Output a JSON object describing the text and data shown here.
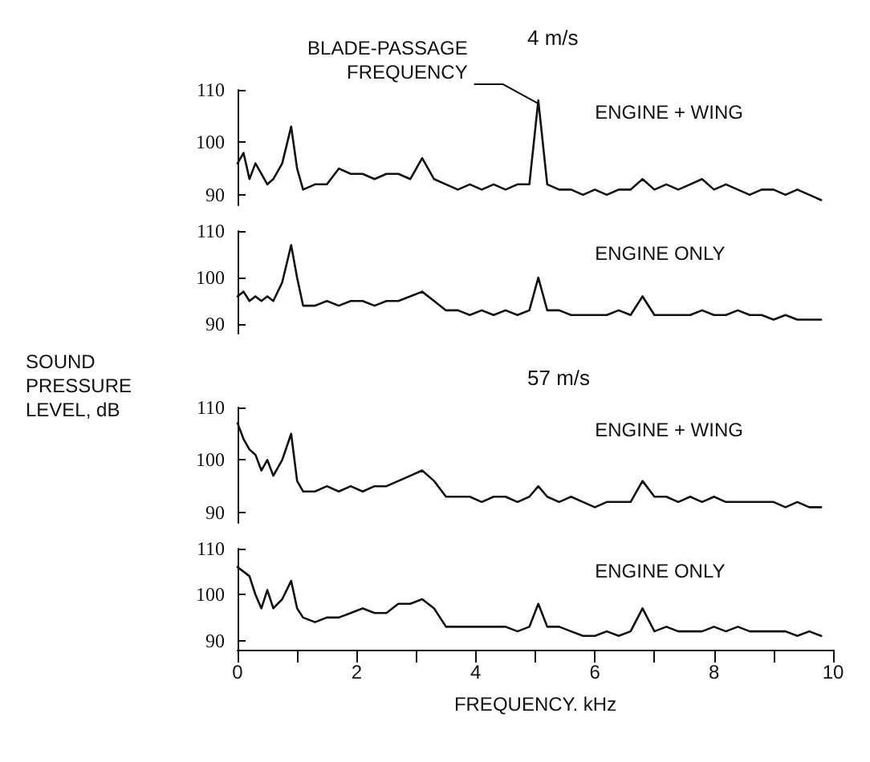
{
  "chart_data": [
    {
      "type": "line",
      "title": "4 m/s",
      "annotations": [
        {
          "text": "BLADE-PASSAGE FREQUENCY",
          "x": 5.05,
          "y": 108
        },
        "ENGINE + WING"
      ],
      "color": "#111111",
      "marker": "none",
      "line_style": "solid",
      "x": [
        0,
        0.1,
        0.2,
        0.3,
        0.4,
        0.5,
        0.6,
        0.75,
        0.9,
        1.0,
        1.1,
        1.3,
        1.5,
        1.7,
        1.9,
        2.1,
        2.3,
        2.5,
        2.7,
        2.9,
        3.1,
        3.3,
        3.5,
        3.7,
        3.9,
        4.1,
        4.3,
        4.5,
        4.7,
        4.9,
        5.05,
        5.2,
        5.4,
        5.6,
        5.8,
        6.0,
        6.2,
        6.4,
        6.6,
        6.8,
        7.0,
        7.2,
        7.4,
        7.6,
        7.8,
        8.0,
        8.2,
        8.4,
        8.6,
        8.8,
        9.0,
        9.2,
        9.4,
        9.6,
        9.8
      ],
      "values": [
        96,
        98,
        93,
        96,
        94,
        92,
        93,
        96,
        103,
        95,
        91,
        92,
        92,
        95,
        94,
        94,
        93,
        94,
        94,
        93,
        97,
        93,
        92,
        91,
        92,
        91,
        92,
        91,
        92,
        92,
        108,
        92,
        91,
        91,
        90,
        91,
        90,
        91,
        91,
        93,
        91,
        92,
        91,
        92,
        93,
        91,
        92,
        91,
        90,
        91,
        91,
        90,
        91,
        90,
        89
      ],
      "xlim": [
        0,
        10
      ],
      "ylim": [
        88,
        110
      ],
      "yticks": [
        90,
        100,
        110
      ],
      "tick_labels": "y"
    },
    {
      "type": "line",
      "annotations": [
        "ENGINE ONLY"
      ],
      "color": "#111111",
      "marker": "none",
      "line_style": "solid",
      "x": [
        0,
        0.1,
        0.2,
        0.3,
        0.4,
        0.5,
        0.6,
        0.75,
        0.9,
        1.0,
        1.1,
        1.3,
        1.5,
        1.7,
        1.9,
        2.1,
        2.3,
        2.5,
        2.7,
        2.9,
        3.1,
        3.3,
        3.5,
        3.7,
        3.9,
        4.1,
        4.3,
        4.5,
        4.7,
        4.9,
        5.05,
        5.2,
        5.4,
        5.6,
        5.8,
        6.0,
        6.2,
        6.4,
        6.6,
        6.8,
        7.0,
        7.2,
        7.4,
        7.6,
        7.8,
        8.0,
        8.2,
        8.4,
        8.6,
        8.8,
        9.0,
        9.2,
        9.4,
        9.6,
        9.8
      ],
      "values": [
        96,
        97,
        95,
        96,
        95,
        96,
        95,
        99,
        107,
        100,
        94,
        94,
        95,
        94,
        95,
        95,
        94,
        95,
        95,
        96,
        97,
        95,
        93,
        93,
        92,
        93,
        92,
        93,
        92,
        93,
        100,
        93,
        93,
        92,
        92,
        92,
        92,
        93,
        92,
        96,
        92,
        92,
        92,
        92,
        93,
        92,
        92,
        93,
        92,
        92,
        91,
        92,
        91,
        91,
        91
      ],
      "xlim": [
        0,
        10
      ],
      "ylim": [
        88,
        110
      ],
      "yticks": [
        90,
        100,
        110
      ],
      "tick_labels": "y"
    },
    {
      "type": "line",
      "title": "57 m/s",
      "ylabel": "SOUND PRESSURE LEVEL, dB",
      "annotations": [
        "ENGINE + WING"
      ],
      "color": "#111111",
      "marker": "none",
      "line_style": "solid",
      "x": [
        0,
        0.1,
        0.2,
        0.3,
        0.4,
        0.5,
        0.6,
        0.75,
        0.9,
        1.0,
        1.1,
        1.3,
        1.5,
        1.7,
        1.9,
        2.1,
        2.3,
        2.5,
        2.7,
        2.9,
        3.1,
        3.3,
        3.5,
        3.7,
        3.9,
        4.1,
        4.3,
        4.5,
        4.7,
        4.9,
        5.05,
        5.2,
        5.4,
        5.6,
        5.8,
        6.0,
        6.2,
        6.4,
        6.6,
        6.8,
        7.0,
        7.2,
        7.4,
        7.6,
        7.8,
        8.0,
        8.2,
        8.4,
        8.6,
        8.8,
        9.0,
        9.2,
        9.4,
        9.6,
        9.8
      ],
      "values": [
        107,
        104,
        102,
        101,
        98,
        100,
        97,
        100,
        105,
        96,
        94,
        94,
        95,
        94,
        95,
        94,
        95,
        95,
        96,
        97,
        98,
        96,
        93,
        93,
        93,
        92,
        93,
        93,
        92,
        93,
        95,
        93,
        92,
        93,
        92,
        91,
        92,
        92,
        92,
        96,
        93,
        93,
        92,
        93,
        92,
        93,
        92,
        92,
        92,
        92,
        92,
        91,
        92,
        91,
        91
      ],
      "xlim": [
        0,
        10
      ],
      "ylim": [
        88,
        110
      ],
      "yticks": [
        90,
        100,
        110
      ],
      "tick_labels": "y"
    },
    {
      "type": "line",
      "xlabel": "FREQUENCY. kHz",
      "annotations": [
        "ENGINE ONLY"
      ],
      "color": "#111111",
      "marker": "none",
      "line_style": "solid",
      "x": [
        0,
        0.1,
        0.2,
        0.3,
        0.4,
        0.5,
        0.6,
        0.75,
        0.9,
        1.0,
        1.1,
        1.3,
        1.5,
        1.7,
        1.9,
        2.1,
        2.3,
        2.5,
        2.7,
        2.9,
        3.1,
        3.3,
        3.5,
        3.7,
        3.9,
        4.1,
        4.3,
        4.5,
        4.7,
        4.9,
        5.05,
        5.2,
        5.4,
        5.6,
        5.8,
        6.0,
        6.2,
        6.4,
        6.6,
        6.8,
        7.0,
        7.2,
        7.4,
        7.6,
        7.8,
        8.0,
        8.2,
        8.4,
        8.6,
        8.8,
        9.0,
        9.2,
        9.4,
        9.6,
        9.8
      ],
      "values": [
        106,
        105,
        104,
        100,
        97,
        101,
        97,
        99,
        103,
        97,
        95,
        94,
        95,
        95,
        96,
        97,
        96,
        96,
        98,
        98,
        99,
        97,
        93,
        93,
        93,
        93,
        93,
        93,
        92,
        93,
        98,
        93,
        93,
        92,
        91,
        91,
        92,
        91,
        92,
        97,
        92,
        93,
        92,
        92,
        92,
        93,
        92,
        93,
        92,
        92,
        92,
        92,
        91,
        92,
        91
      ],
      "xlim": [
        0,
        10
      ],
      "xticks": [
        0,
        {
          "value": 1,
          "label": null
        },
        2,
        {
          "value": 3,
          "label": null
        },
        4,
        {
          "value": 5,
          "label": null
        },
        6,
        {
          "value": 7,
          "label": null
        },
        8,
        {
          "value": 9,
          "label": null
        },
        10
      ],
      "ylim": [
        88,
        110
      ],
      "yticks": [
        90,
        100,
        110
      ]
    }
  ]
}
